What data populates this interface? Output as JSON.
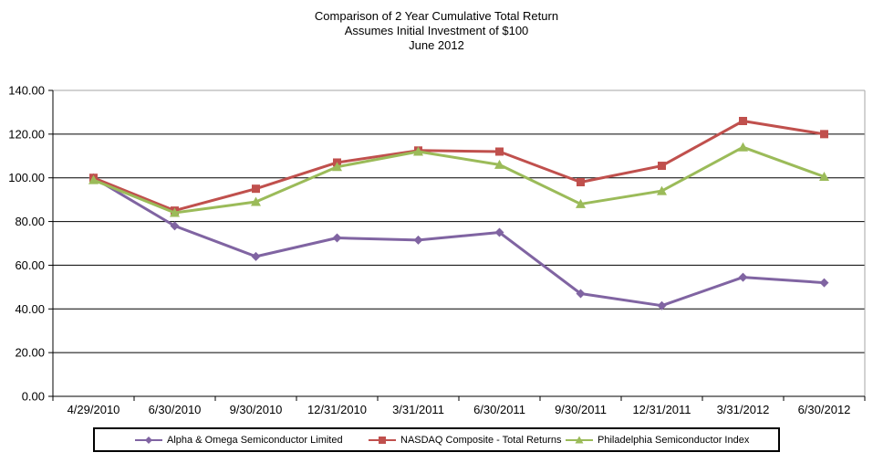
{
  "title": {
    "line1": "Comparison of 2 Year Cumulative  Total Return",
    "line2": "Assumes Initial Investment  of $100",
    "line3": "June 2012"
  },
  "chart_data": {
    "type": "line",
    "categories": [
      "4/29/2010",
      "6/30/2010",
      "9/30/2010",
      "12/31/2010",
      "3/31/2011",
      "6/30/2011",
      "9/30/2011",
      "12/31/2011",
      "3/31/2012",
      "6/30/2012"
    ],
    "series": [
      {
        "name": "Alpha & Omega Semiconductor Limited",
        "marker": "diamond",
        "color": "#8064A2",
        "values": [
          100,
          78,
          64,
          72.5,
          71.5,
          75,
          47,
          41.5,
          54.5,
          52
        ]
      },
      {
        "name": "NASDAQ Composite - Total Returns",
        "marker": "square",
        "color": "#C0504D",
        "values": [
          100,
          85,
          95,
          107,
          112.5,
          112,
          98,
          105.5,
          126,
          120
        ]
      },
      {
        "name": "Philadelphia Semiconductor Index",
        "marker": "triangle",
        "color": "#9BBB59",
        "values": [
          99,
          84,
          89,
          105,
          112,
          106,
          88,
          94,
          114,
          100.5
        ]
      }
    ],
    "ylim": [
      0,
      140
    ],
    "ytick_step": 20,
    "ytick_labels": [
      "0.00",
      "20.00",
      "40.00",
      "60.00",
      "80.00",
      "100.00",
      "120.00",
      "140.00"
    ],
    "grid": true,
    "legend_position": "bottom",
    "colors": {
      "gridline": "#000000",
      "axis": "#000000",
      "plot_border": "#A6A6A6",
      "tick_label": "#000000"
    }
  }
}
